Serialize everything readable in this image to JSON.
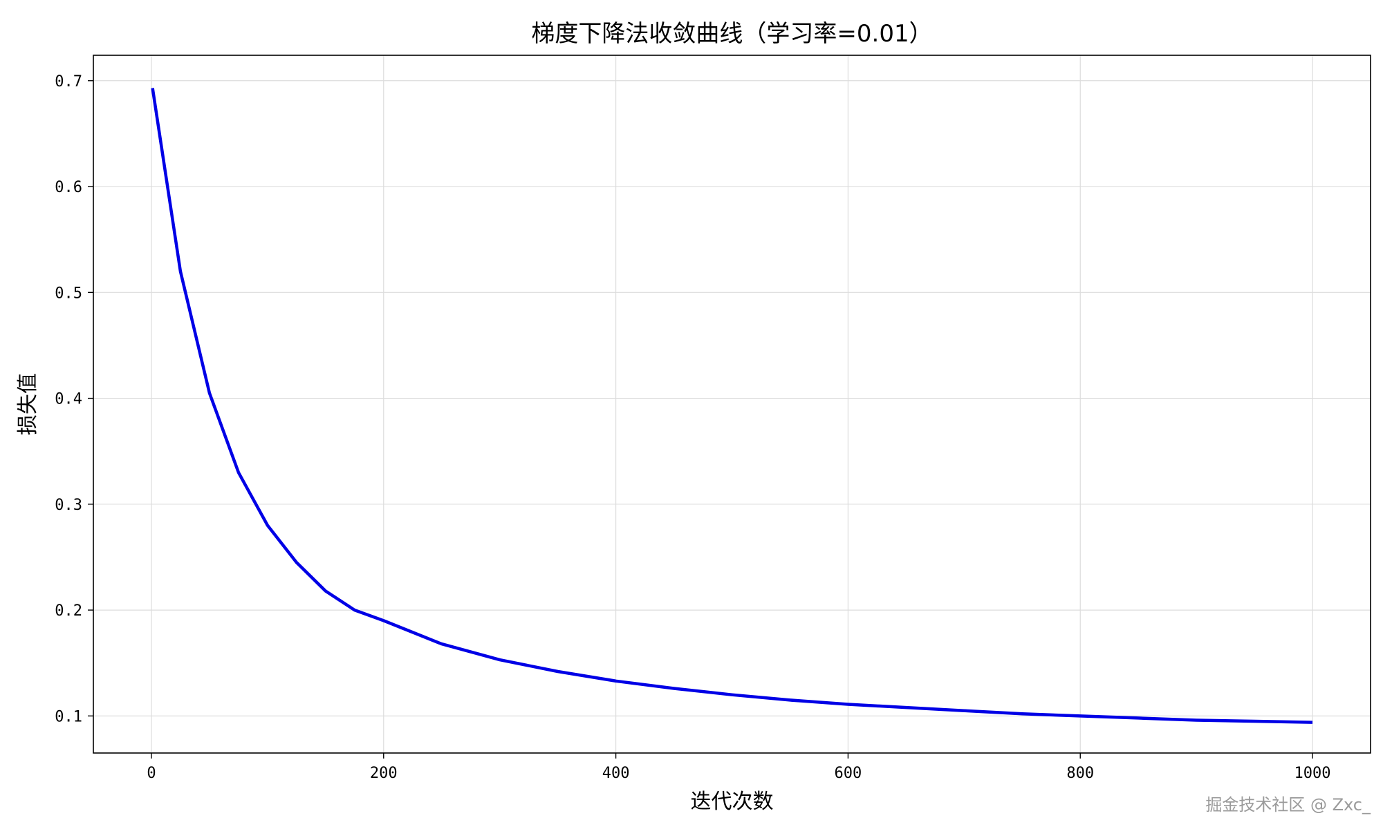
{
  "chart_data": {
    "type": "line",
    "title": "梯度下降法收敛曲线（学习率=0.01）",
    "xlabel": "迭代次数",
    "ylabel": "损失值",
    "xlim": [
      -50,
      1050
    ],
    "ylim": [
      0.065,
      0.724
    ],
    "xticks": [
      0,
      200,
      400,
      600,
      800,
      1000
    ],
    "xtick_labels": [
      "0",
      "200",
      "400",
      "600",
      "800",
      "1000"
    ],
    "yticks": [
      0.1,
      0.2,
      0.3,
      0.4,
      0.5,
      0.6,
      0.7
    ],
    "ytick_labels": [
      "0.1",
      "0.2",
      "0.3",
      "0.4",
      "0.5",
      "0.6",
      "0.7"
    ],
    "grid": true,
    "series": [
      {
        "color": "#0000e6",
        "x": [
          1,
          25,
          50,
          75,
          100,
          125,
          150,
          175,
          200,
          250,
          300,
          350,
          400,
          450,
          500,
          550,
          600,
          650,
          700,
          750,
          800,
          850,
          900,
          950,
          1000
        ],
        "y": [
          0.693,
          0.52,
          0.405,
          0.33,
          0.28,
          0.245,
          0.218,
          0.2,
          0.19,
          0.168,
          0.153,
          0.142,
          0.133,
          0.126,
          0.12,
          0.115,
          0.111,
          0.108,
          0.105,
          0.102,
          0.1,
          0.098,
          0.096,
          0.095,
          0.094
        ]
      }
    ]
  },
  "watermark": "掘金技术社区 @ Zxc_"
}
